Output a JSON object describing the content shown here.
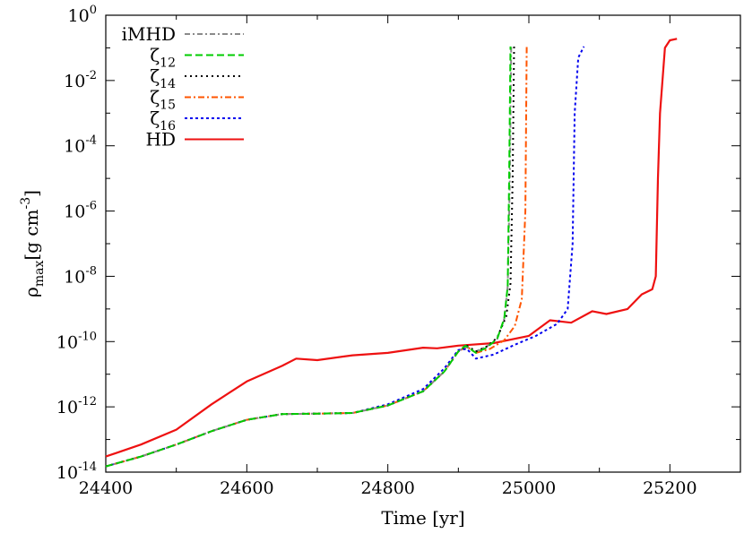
{
  "chart_data": {
    "type": "line",
    "xlabel": "Time [yr]",
    "ylabel": {
      "base": "ρ",
      "sub": "max",
      "main": "[g cm",
      "sup": "-3",
      "end": "]"
    },
    "xlim": [
      24400,
      25300
    ],
    "ylog": true,
    "ylim": [
      1e-14,
      1
    ],
    "xticks": [
      24400,
      24600,
      24800,
      25000,
      25200
    ],
    "yticks": [
      {
        "value": 1e-14,
        "base": "10",
        "exp": "-14"
      },
      {
        "value": 1e-12,
        "base": "10",
        "exp": "-12"
      },
      {
        "value": 1e-10,
        "base": "10",
        "exp": "-10"
      },
      {
        "value": 1e-08,
        "base": "10",
        "exp": "-8"
      },
      {
        "value": 1e-06,
        "base": "10",
        "exp": "-6"
      },
      {
        "value": 0.0001,
        "base": "10",
        "exp": "-4"
      },
      {
        "value": 0.01,
        "base": "10",
        "exp": "-2"
      },
      {
        "value": 1,
        "base": "10",
        "exp": "0"
      }
    ],
    "grid": false,
    "legend_position": "top-left",
    "series": [
      {
        "name": "iMHD",
        "sub": "",
        "color": "#8a8a8a",
        "dash": "6,3,2,3",
        "points": [
          [
            24400,
            1.5e-14
          ],
          [
            24450,
            3e-14
          ],
          [
            24500,
            7e-14
          ],
          [
            24550,
            1.8e-13
          ],
          [
            24600,
            4e-13
          ],
          [
            24650,
            6e-13
          ],
          [
            24700,
            6.2e-13
          ],
          [
            24750,
            6.5e-13
          ],
          [
            24800,
            1.1e-12
          ],
          [
            24850,
            3e-12
          ],
          [
            24880,
            1.2e-11
          ],
          [
            24900,
            5e-11
          ],
          [
            24910,
            7e-11
          ],
          [
            24925,
            5e-11
          ],
          [
            24940,
            7e-11
          ],
          [
            24955,
            1.2e-10
          ],
          [
            24965,
            5e-10
          ],
          [
            24970,
            5e-09
          ],
          [
            24973,
            1e-05
          ],
          [
            24975,
            0.11
          ]
        ]
      },
      {
        "name": "ζ",
        "sub": "12",
        "color": "#00cc00",
        "dash": "8,4",
        "points": [
          [
            24400,
            1.5e-14
          ],
          [
            24450,
            3e-14
          ],
          [
            24500,
            7e-14
          ],
          [
            24550,
            1.8e-13
          ],
          [
            24600,
            4e-13
          ],
          [
            24650,
            6e-13
          ],
          [
            24700,
            6.2e-13
          ],
          [
            24750,
            6.5e-13
          ],
          [
            24800,
            1.1e-12
          ],
          [
            24850,
            3e-12
          ],
          [
            24880,
            1.2e-11
          ],
          [
            24900,
            5e-11
          ],
          [
            24910,
            7.5e-11
          ],
          [
            24925,
            4.5e-11
          ],
          [
            24940,
            6.5e-11
          ],
          [
            24955,
            1.2e-10
          ],
          [
            24965,
            5e-10
          ],
          [
            24970,
            5e-09
          ],
          [
            24972,
            1e-05
          ],
          [
            24974,
            0.11
          ]
        ]
      },
      {
        "name": "ζ",
        "sub": "14",
        "color": "#000000",
        "dash": "2,4",
        "points": [
          [
            24400,
            1.5e-14
          ],
          [
            24450,
            3e-14
          ],
          [
            24500,
            7e-14
          ],
          [
            24550,
            1.8e-13
          ],
          [
            24600,
            4e-13
          ],
          [
            24650,
            6e-13
          ],
          [
            24700,
            6.2e-13
          ],
          [
            24750,
            6.5e-13
          ],
          [
            24800,
            1.1e-12
          ],
          [
            24850,
            3e-12
          ],
          [
            24880,
            1.2e-11
          ],
          [
            24900,
            5e-11
          ],
          [
            24912,
            7.5e-11
          ],
          [
            24925,
            5e-11
          ],
          [
            24940,
            7e-11
          ],
          [
            24955,
            1.3e-10
          ],
          [
            24968,
            6e-10
          ],
          [
            24974,
            6e-09
          ],
          [
            24977,
            1e-05
          ],
          [
            24979,
            0.11
          ]
        ]
      },
      {
        "name": "ζ",
        "sub": "15",
        "color": "#ff5500",
        "dash": "7,3,2,3",
        "points": [
          [
            24400,
            1.5e-14
          ],
          [
            24450,
            3e-14
          ],
          [
            24500,
            7e-14
          ],
          [
            24550,
            1.8e-13
          ],
          [
            24600,
            4e-13
          ],
          [
            24650,
            6e-13
          ],
          [
            24700,
            6.2e-13
          ],
          [
            24750,
            6.5e-13
          ],
          [
            24800,
            1.1e-12
          ],
          [
            24850,
            3e-12
          ],
          [
            24880,
            1.2e-11
          ],
          [
            24900,
            5e-11
          ],
          [
            24912,
            7e-11
          ],
          [
            24925,
            4.5e-11
          ],
          [
            24945,
            6e-11
          ],
          [
            24965,
            1.1e-10
          ],
          [
            24980,
            3e-10
          ],
          [
            24990,
            2e-09
          ],
          [
            24995,
            1e-06
          ],
          [
            24997,
            0.11
          ]
        ]
      },
      {
        "name": "ζ",
        "sub": "16",
        "color": "#0000ee",
        "dash": "3,3",
        "points": [
          [
            24400,
            1.5e-14
          ],
          [
            24450,
            3e-14
          ],
          [
            24500,
            7e-14
          ],
          [
            24550,
            1.8e-13
          ],
          [
            24600,
            4e-13
          ],
          [
            24650,
            6e-13
          ],
          [
            24700,
            6.2e-13
          ],
          [
            24750,
            6.5e-13
          ],
          [
            24800,
            1.2e-12
          ],
          [
            24850,
            3.5e-12
          ],
          [
            24880,
            1.5e-11
          ],
          [
            24900,
            5.5e-11
          ],
          [
            24912,
            6e-11
          ],
          [
            24925,
            3e-11
          ],
          [
            24950,
            4e-11
          ],
          [
            24980,
            8e-11
          ],
          [
            25010,
            1.5e-10
          ],
          [
            25040,
            3.5e-10
          ],
          [
            25055,
            1e-09
          ],
          [
            25062,
            1e-07
          ],
          [
            25065,
            0.001
          ],
          [
            25070,
            0.05
          ],
          [
            25078,
            0.11
          ]
        ]
      },
      {
        "name": "HD",
        "sub": "",
        "color": "#ee1111",
        "dash": "",
        "points": [
          [
            24400,
            3e-14
          ],
          [
            24450,
            7e-14
          ],
          [
            24500,
            2e-13
          ],
          [
            24550,
            1.2e-12
          ],
          [
            24600,
            6e-12
          ],
          [
            24650,
            1.8e-11
          ],
          [
            24670,
            3e-11
          ],
          [
            24700,
            2.7e-11
          ],
          [
            24750,
            3.8e-11
          ],
          [
            24800,
            4.5e-11
          ],
          [
            24850,
            6.5e-11
          ],
          [
            24870,
            6.2e-11
          ],
          [
            24900,
            7.5e-11
          ],
          [
            24950,
            9e-11
          ],
          [
            25000,
            1.5e-10
          ],
          [
            25030,
            4.5e-10
          ],
          [
            25060,
            3.8e-10
          ],
          [
            25090,
            8.5e-10
          ],
          [
            25110,
            7e-10
          ],
          [
            25140,
            1e-09
          ],
          [
            25160,
            2.8e-09
          ],
          [
            25175,
            4e-09
          ],
          [
            25180,
            1e-08
          ],
          [
            25183,
            1e-05
          ],
          [
            25186,
            0.001
          ],
          [
            25193,
            0.1
          ],
          [
            25200,
            0.17
          ],
          [
            25210,
            0.19
          ]
        ]
      }
    ]
  }
}
